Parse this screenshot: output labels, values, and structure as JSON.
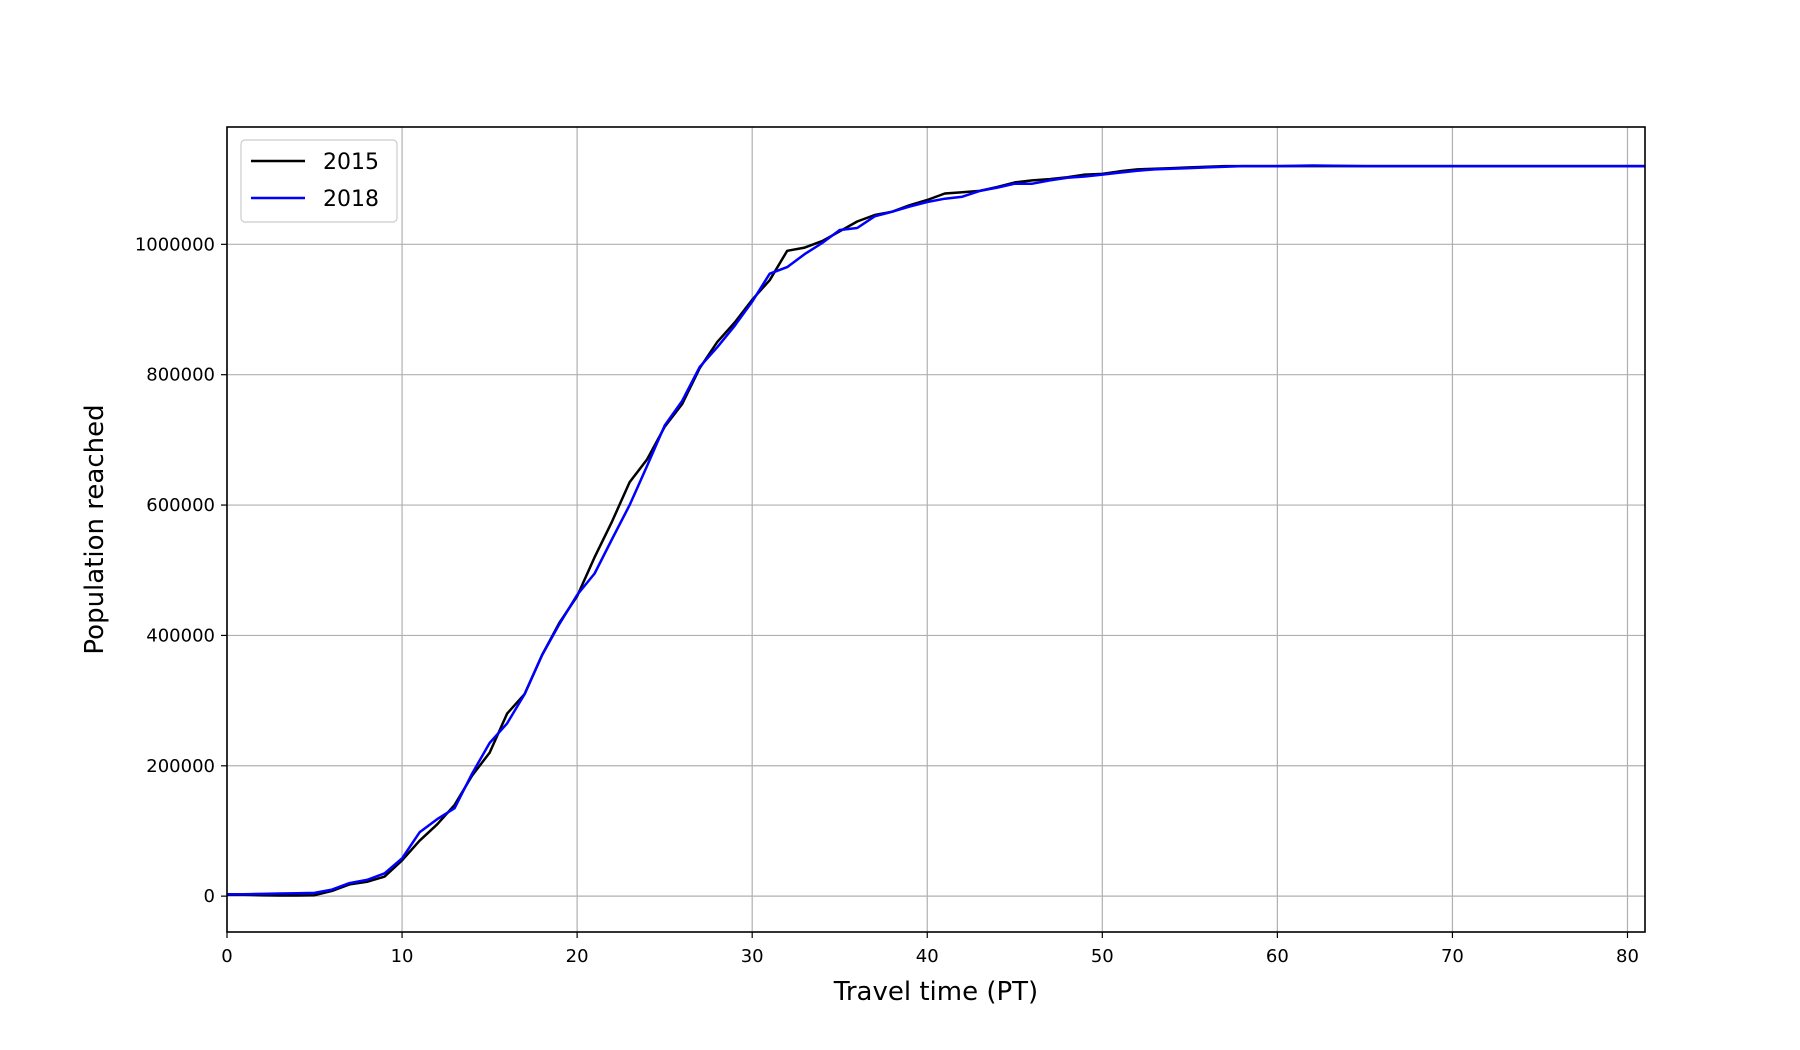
{
  "chart_data": {
    "type": "line",
    "title": "",
    "xlabel": "Travel time (PT)",
    "ylabel": "Population reached",
    "xlim": [
      0,
      81
    ],
    "ylim": [
      -55000,
      1180000
    ],
    "xticks": [
      0,
      10,
      20,
      30,
      40,
      50,
      60,
      70,
      80
    ],
    "yticks": [
      0,
      200000,
      400000,
      600000,
      800000,
      1000000
    ],
    "grid": true,
    "legend_position": "upper-left",
    "series": [
      {
        "name": "2015",
        "color": "#000000",
        "x": [
          0,
          1,
          2,
          3,
          4,
          5,
          6,
          7,
          8,
          9,
          10,
          11,
          12,
          13,
          14,
          15,
          16,
          17,
          18,
          19,
          20,
          21,
          22,
          23,
          24,
          25,
          26,
          27,
          28,
          29,
          30,
          31,
          32,
          33,
          34,
          35,
          36,
          37,
          38,
          39,
          40,
          41,
          42,
          43,
          44,
          45,
          46,
          47,
          48,
          49,
          50,
          51,
          52,
          53,
          54,
          55,
          56,
          57,
          58,
          59,
          60,
          62,
          65,
          70,
          75,
          81
        ],
        "y": [
          2000,
          2000,
          1500,
          1000,
          1000,
          1500,
          8000,
          18000,
          22000,
          30000,
          55000,
          85000,
          110000,
          140000,
          185000,
          220000,
          280000,
          310000,
          370000,
          420000,
          460000,
          520000,
          575000,
          635000,
          670000,
          720000,
          755000,
          810000,
          850000,
          880000,
          915000,
          945000,
          990000,
          995000,
          1005000,
          1020000,
          1035000,
          1045000,
          1050000,
          1060000,
          1068000,
          1078000,
          1080000,
          1082000,
          1088000,
          1095000,
          1098000,
          1100000,
          1103000,
          1107000,
          1108000,
          1112000,
          1115000,
          1116000,
          1117000,
          1118000,
          1119000,
          1120000,
          1120000,
          1120000,
          1120000,
          1120000,
          1120000,
          1120000,
          1120000,
          1120000
        ]
      },
      {
        "name": "2018",
        "color": "#0000ff",
        "x": [
          0,
          1,
          2,
          3,
          4,
          5,
          6,
          7,
          8,
          9,
          10,
          11,
          12,
          13,
          14,
          15,
          16,
          17,
          18,
          19,
          20,
          21,
          22,
          23,
          24,
          25,
          26,
          27,
          28,
          29,
          30,
          31,
          32,
          33,
          34,
          35,
          36,
          37,
          38,
          39,
          40,
          41,
          42,
          43,
          44,
          45,
          46,
          47,
          48,
          49,
          50,
          51,
          52,
          53,
          54,
          55,
          56,
          57,
          58,
          59,
          60,
          62,
          65,
          70,
          75,
          81
        ],
        "y": [
          3000,
          3000,
          3500,
          4000,
          4500,
          5000,
          10000,
          20000,
          25000,
          35000,
          58000,
          98000,
          118000,
          135000,
          188000,
          235000,
          265000,
          310000,
          370000,
          418000,
          462000,
          495000,
          548000,
          600000,
          660000,
          722000,
          760000,
          812000,
          842000,
          875000,
          912000,
          955000,
          965000,
          985000,
          1002000,
          1022000,
          1025000,
          1043000,
          1050000,
          1058000,
          1065000,
          1070000,
          1073000,
          1082000,
          1087000,
          1093000,
          1093000,
          1098000,
          1102000,
          1104000,
          1107000,
          1110000,
          1113000,
          1115000,
          1116000,
          1117000,
          1118000,
          1119000,
          1120000,
          1120000,
          1120000,
          1121000,
          1120000,
          1120000,
          1120000,
          1120000
        ]
      }
    ]
  }
}
